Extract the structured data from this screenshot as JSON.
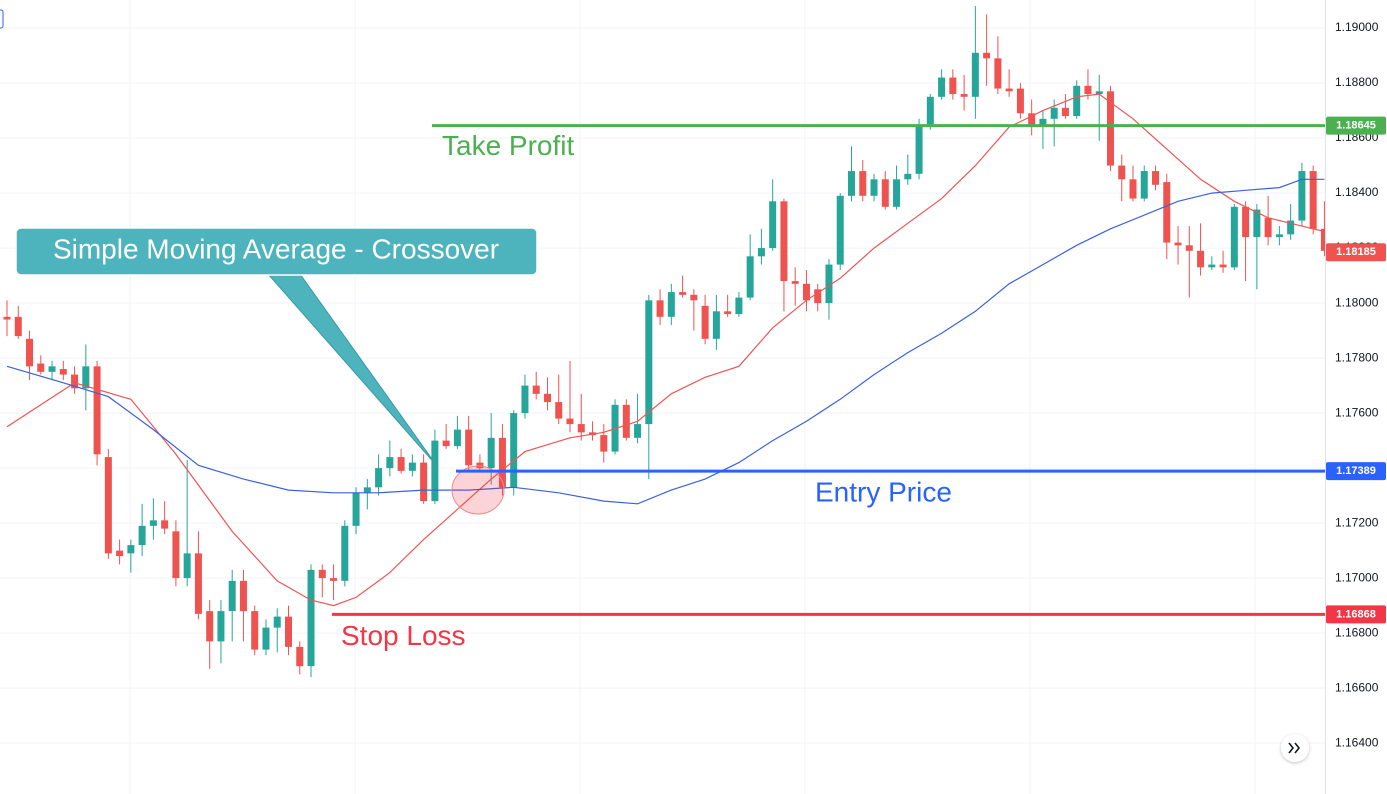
{
  "chart_data": {
    "type": "candlestick",
    "open": [
      1.1795,
      1.1795,
      1.1787,
      1.1778,
      1.1775,
      1.1776,
      1.1774,
      1.1769,
      1.1777,
      1.1744,
      1.171,
      1.1709,
      1.1712,
      1.1719,
      1.1721,
      1.1717,
      1.17,
      1.1709,
      1.1688,
      1.1677,
      1.1688,
      1.1699,
      1.1688,
      1.1674,
      1.1682,
      1.1686,
      1.1675,
      1.1668,
      1.1703,
      1.17,
      1.1699,
      1.1719,
      1.1731,
      1.1733,
      1.174,
      1.1744,
      1.1739,
      1.1742,
      1.1728,
      1.175,
      1.1748,
      1.1754,
      1.1742,
      1.174,
      1.1751,
      1.1733,
      1.176,
      1.177,
      1.1767,
      1.1764,
      1.1758,
      1.1756,
      1.1753,
      1.1752,
      1.1746,
      1.1763,
      1.1751,
      1.1756,
      1.1801,
      1.1795,
      1.1804,
      1.1803,
      1.1799,
      1.1787,
      1.1797,
      1.1796,
      1.1802,
      1.1817,
      1.182,
      1.1837,
      1.1808,
      1.1807,
      1.1805,
      1.18,
      1.1814,
      1.1839,
      1.1848,
      1.1839,
      1.1845,
      1.1835,
      1.1845,
      1.1847,
      1.1865,
      1.1875,
      1.1882,
      1.1876,
      1.1875,
      1.1891,
      1.1889,
      1.1878,
      1.1878,
      1.1869,
      1.1864,
      1.1867,
      1.1871,
      1.1868,
      1.1879,
      1.1876,
      1.1877,
      1.185,
      1.1845,
      1.1838,
      1.1848,
      1.1844,
      1.1822,
      1.1821,
      1.1819,
      1.1813,
      1.1814,
      1.1813,
      1.1835,
      1.1824,
      1.1831,
      1.1824,
      1.1825,
      1.183,
      1.1848,
      1.1827
    ],
    "high": [
      1.1801,
      1.1799,
      1.179,
      1.1781,
      1.1779,
      1.1779,
      1.1777,
      1.1785,
      1.1779,
      1.1747,
      1.1714,
      1.1714,
      1.1727,
      1.1729,
      1.1728,
      1.1721,
      1.1743,
      1.1717,
      1.1692,
      1.1692,
      1.1703,
      1.1703,
      1.169,
      1.1685,
      1.1689,
      1.169,
      1.1677,
      1.1705,
      1.1705,
      1.1705,
      1.1721,
      1.1733,
      1.1736,
      1.1745,
      1.175,
      1.1747,
      1.1745,
      1.1745,
      1.1754,
      1.1756,
      1.1759,
      1.1759,
      1.1745,
      1.176,
      1.1756,
      1.1761,
      1.1774,
      1.1775,
      1.1773,
      1.1774,
      1.1779,
      1.1767,
      1.1757,
      1.1756,
      1.1765,
      1.1765,
      1.1767,
      1.1803,
      1.1805,
      1.1807,
      1.181,
      1.1805,
      1.1803,
      1.1803,
      1.1803,
      1.1804,
      1.1825,
      1.1827,
      1.1845,
      1.1838,
      1.1813,
      1.1812,
      1.1807,
      1.1816,
      1.184,
      1.1857,
      1.1852,
      1.1847,
      1.1848,
      1.185,
      1.1854,
      1.1867,
      1.1876,
      1.1885,
      1.1885,
      1.1883,
      1.1908,
      1.1905,
      1.1897,
      1.1885,
      1.188,
      1.1874,
      1.187,
      1.1874,
      1.1876,
      1.1881,
      1.1885,
      1.1883,
      1.1879,
      1.1854,
      1.185,
      1.185,
      1.185,
      1.1847,
      1.1828,
      1.1828,
      1.1829,
      1.1817,
      1.1819,
      1.1836,
      1.1837,
      1.1836,
      1.1839,
      1.1828,
      1.1836,
      1.1851,
      1.185,
      1.1837
    ],
    "low": [
      1.1788,
      1.1787,
      1.1772,
      1.1774,
      1.1772,
      1.1772,
      1.1767,
      1.1761,
      1.1741,
      1.1707,
      1.1705,
      1.1702,
      1.1708,
      1.1714,
      1.1716,
      1.1697,
      1.1697,
      1.1685,
      1.1667,
      1.1669,
      1.1677,
      1.1677,
      1.1672,
      1.1672,
      1.1673,
      1.1672,
      1.1665,
      1.1664,
      1.1693,
      1.1692,
      1.1697,
      1.1716,
      1.1725,
      1.173,
      1.1737,
      1.1738,
      1.1737,
      1.1727,
      1.1727,
      1.1747,
      1.1747,
      1.1739,
      1.1739,
      1.1734,
      1.173,
      1.173,
      1.1758,
      1.1765,
      1.1761,
      1.1756,
      1.1753,
      1.175,
      1.175,
      1.1742,
      1.1745,
      1.175,
      1.1749,
      1.1736,
      1.1792,
      1.1792,
      1.1802,
      1.179,
      1.1785,
      1.1783,
      1.1795,
      1.1795,
      1.1801,
      1.1814,
      1.1819,
      1.1797,
      1.1799,
      1.1797,
      1.1797,
      1.1794,
      1.1812,
      1.1837,
      1.1837,
      1.1837,
      1.1834,
      1.1834,
      1.1843,
      1.1845,
      1.1863,
      1.1874,
      1.1874,
      1.187,
      1.1867,
      1.1879,
      1.1876,
      1.1875,
      1.1867,
      1.1861,
      1.1856,
      1.1857,
      1.1867,
      1.1867,
      1.1874,
      1.1859,
      1.1848,
      1.1837,
      1.1837,
      1.1837,
      1.1841,
      1.1816,
      1.1814,
      1.1802,
      1.181,
      1.1812,
      1.1811,
      1.1812,
      1.1808,
      1.1805,
      1.1821,
      1.1821,
      1.1823,
      1.1828,
      1.1825,
      1.1817
    ],
    "close": [
      1.1794,
      1.1788,
      1.1777,
      1.1775,
      1.1777,
      1.1774,
      1.1769,
      1.1777,
      1.1745,
      1.1709,
      1.1708,
      1.1712,
      1.1719,
      1.1721,
      1.1718,
      1.17,
      1.1709,
      1.1687,
      1.1677,
      1.1688,
      1.1699,
      1.1688,
      1.1674,
      1.1682,
      1.1686,
      1.1675,
      1.1668,
      1.1703,
      1.17,
      1.1699,
      1.1719,
      1.1731,
      1.1733,
      1.174,
      1.1744,
      1.1739,
      1.1742,
      1.1728,
      1.175,
      1.1748,
      1.1754,
      1.1741,
      1.174,
      1.1751,
      1.1733,
      1.176,
      1.177,
      1.1767,
      1.1764,
      1.1758,
      1.1756,
      1.1753,
      1.1752,
      1.1746,
      1.1763,
      1.1751,
      1.1756,
      1.1801,
      1.1795,
      1.1804,
      1.1803,
      1.1801,
      1.1787,
      1.1797,
      1.1796,
      1.1802,
      1.1817,
      1.182,
      1.1837,
      1.1808,
      1.1807,
      1.1801,
      1.18,
      1.1814,
      1.1839,
      1.1848,
      1.1839,
      1.1845,
      1.1835,
      1.1845,
      1.1847,
      1.1865,
      1.1875,
      1.1882,
      1.1876,
      1.1875,
      1.1891,
      1.1889,
      1.1878,
      1.1877,
      1.1869,
      1.1864,
      1.1867,
      1.1871,
      1.1868,
      1.1879,
      1.1876,
      1.1877,
      1.185,
      1.1845,
      1.1838,
      1.1848,
      1.1843,
      1.1822,
      1.1821,
      1.1819,
      1.1813,
      1.1814,
      1.1813,
      1.1835,
      1.1824,
      1.1834,
      1.1824,
      1.1825,
      1.183,
      1.1848,
      1.1827,
      1.1819
    ],
    "up_color": "#26a69a",
    "down_color": "#ef5350",
    "series": [
      {
        "color": "#f05454",
        "x": [
          0,
          6,
          11,
          15,
          20,
          24,
          27,
          29,
          31,
          34,
          37,
          40,
          43,
          46,
          50,
          53,
          56,
          59,
          62,
          65,
          68,
          71,
          74,
          77,
          80,
          83,
          86,
          89,
          92,
          95,
          97,
          100,
          103,
          106,
          109,
          112,
          115,
          117
        ],
        "values": [
          1.1755,
          1.1771,
          1.1765,
          1.1745,
          1.1717,
          1.1699,
          1.1692,
          1.169,
          1.1693,
          1.1702,
          1.1714,
          1.1725,
          1.1736,
          1.1746,
          1.1751,
          1.1753,
          1.1757,
          1.1767,
          1.1773,
          1.1777,
          1.1791,
          1.1801,
          1.1809,
          1.182,
          1.1829,
          1.1838,
          1.185,
          1.1864,
          1.187,
          1.1875,
          1.1876,
          1.1867,
          1.1856,
          1.1845,
          1.1837,
          1.1831,
          1.1828,
          1.1826
        ]
      },
      {
        "color": "#3a62dc",
        "x": [
          0,
          5,
          9,
          13,
          17,
          21,
          25,
          29,
          33,
          37,
          41,
          45,
          49,
          53,
          56,
          59,
          62,
          65,
          68,
          71,
          74,
          77,
          80,
          83,
          86,
          89,
          92,
          95,
          98,
          101,
          104,
          107,
          110,
          113,
          115,
          117
        ],
        "values": [
          1.1777,
          1.1771,
          1.1766,
          1.1754,
          1.1741,
          1.1736,
          1.1732,
          1.1731,
          1.1731,
          1.1732,
          1.1732,
          1.1733,
          1.1731,
          1.1728,
          1.1727,
          1.1732,
          1.1736,
          1.1742,
          1.175,
          1.1757,
          1.1765,
          1.1774,
          1.1782,
          1.1789,
          1.1797,
          1.1807,
          1.1814,
          1.1821,
          1.1827,
          1.1832,
          1.1837,
          1.184,
          1.1841,
          1.1842,
          1.1845,
          1.1845
        ]
      }
    ],
    "levels": [
      {
        "name": "Take Profit",
        "value": 1.18645,
        "color": "#4caf50"
      },
      {
        "name": "Entry Price",
        "value": 1.17389,
        "color": "#2962ff"
      },
      {
        "name": "Stop Loss",
        "value": 1.16868,
        "color": "#f23645"
      }
    ],
    "last_price": 1.18185,
    "annotation": "Simple Moving Average - Crossover",
    "ylim": [
      1.16215,
      1.19102
    ],
    "yticks": [
      {
        "value": 1.164,
        "label": "1.16400"
      },
      {
        "value": 1.166,
        "label": "1.16600"
      },
      {
        "value": 1.168,
        "label": "1.16800"
      },
      {
        "value": 1.17,
        "label": "1.17000"
      },
      {
        "value": 1.172,
        "label": "1.17200"
      },
      {
        "value": 1.174,
        "label": "1.17400"
      },
      {
        "value": 1.176,
        "label": "1.17600"
      },
      {
        "value": 1.178,
        "label": "1.17800"
      },
      {
        "value": 1.18,
        "label": "1.18000"
      },
      {
        "value": 1.182,
        "label": "1.18200"
      },
      {
        "value": 1.184,
        "label": "1.18400"
      },
      {
        "value": 1.186,
        "label": "1.18600"
      },
      {
        "value": 1.188,
        "label": "1.18800"
      },
      {
        "value": 1.19,
        "label": "1.19000"
      }
    ],
    "grid": true
  }
}
